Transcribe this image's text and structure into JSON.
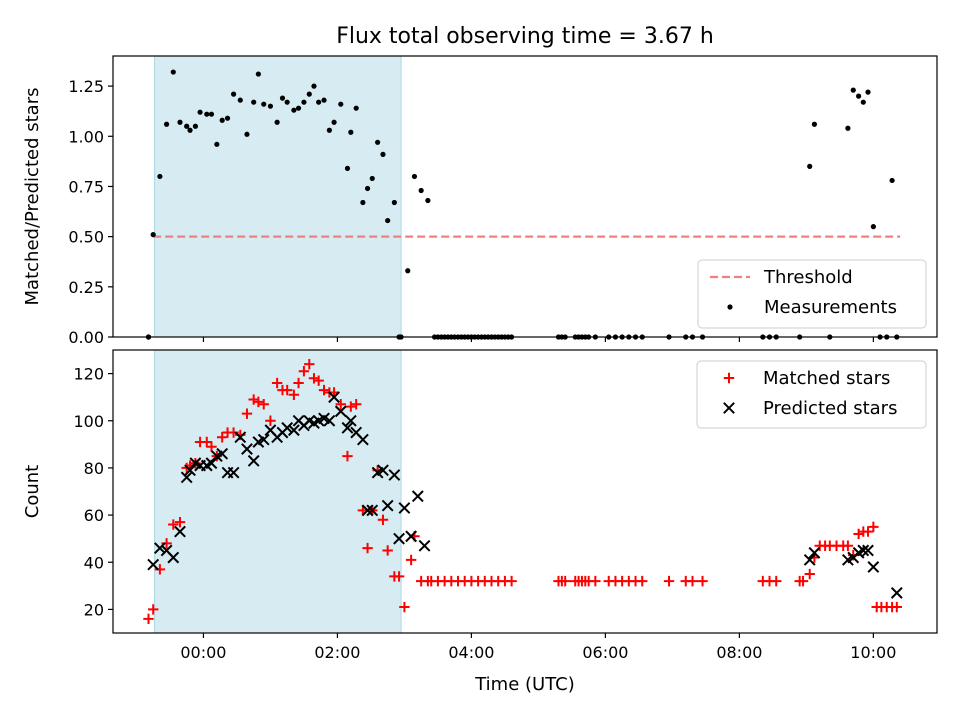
{
  "chart_data": {
    "title": "Flux total observing time = 3.67 h",
    "xlabel": "Time (UTC)",
    "x_unit": "hours UTC",
    "xlim": [
      -1.35,
      10.95
    ],
    "x_ticks": [
      0,
      2,
      4,
      6,
      8,
      10
    ],
    "x_tick_labels": [
      "00:00",
      "02:00",
      "04:00",
      "06:00",
      "08:00",
      "10:00"
    ],
    "shaded_interval": {
      "x_start": -0.73,
      "x_end": 2.95,
      "color": "#add8e6"
    },
    "panels": [
      {
        "type": "scatter",
        "ylabel": "Matched/Predicted stars",
        "ylim": [
          0,
          1.4
        ],
        "y_ticks": [
          0.0,
          0.25,
          0.5,
          0.75,
          1.0,
          1.25
        ],
        "y_tick_labels": [
          "0.00",
          "0.25",
          "0.50",
          "0.75",
          "1.00",
          "1.25"
        ],
        "legend": {
          "position": "lower right",
          "entries": [
            "Threshold",
            "Measurements"
          ]
        },
        "threshold": {
          "name": "Threshold",
          "y": 0.5,
          "x_range": [
            -0.75,
            10.4
          ],
          "color": "#f08080"
        },
        "series": [
          {
            "name": "Measurements",
            "marker": "dot",
            "color": "#000000",
            "x": [
              -0.82,
              -0.75,
              -0.65,
              -0.55,
              -0.45,
              -0.35,
              -0.25,
              -0.2,
              -0.12,
              -0.05,
              0.05,
              0.12,
              0.2,
              0.28,
              0.36,
              0.45,
              0.55,
              0.65,
              0.75,
              0.82,
              0.9,
              1.0,
              1.1,
              1.18,
              1.25,
              1.35,
              1.42,
              1.5,
              1.58,
              1.65,
              1.72,
              1.8,
              1.88,
              1.95,
              2.05,
              2.15,
              2.2,
              2.28,
              2.38,
              2.45,
              2.52,
              2.6,
              2.68,
              2.75,
              2.85,
              2.92,
              3.05,
              3.15,
              3.25,
              3.35,
              9.05,
              9.12,
              9.62,
              9.7,
              9.78,
              9.85,
              9.92,
              10.0,
              10.28,
              -0.82,
              2.95,
              3.45,
              3.5,
              3.55,
              3.6,
              3.65,
              3.7,
              3.75,
              3.8,
              3.85,
              3.9,
              3.95,
              4.0,
              4.05,
              4.1,
              4.15,
              4.2,
              4.25,
              4.3,
              4.35,
              4.4,
              4.45,
              4.5,
              4.55,
              4.6,
              5.3,
              5.35,
              5.4,
              5.55,
              5.6,
              5.65,
              5.7,
              5.75,
              5.85,
              6.05,
              6.15,
              6.25,
              6.35,
              6.45,
              6.55,
              6.95,
              7.2,
              7.3,
              7.45,
              8.35,
              8.45,
              8.55,
              8.9,
              9.35,
              10.1,
              10.2,
              10.35
            ],
            "y": [
              0.0,
              0.51,
              0.8,
              1.06,
              1.32,
              1.07,
              1.05,
              1.03,
              1.05,
              1.12,
              1.11,
              1.11,
              0.96,
              1.08,
              1.09,
              1.21,
              1.18,
              1.01,
              1.17,
              1.31,
              1.16,
              1.15,
              1.07,
              1.19,
              1.17,
              1.13,
              1.14,
              1.17,
              1.21,
              1.25,
              1.17,
              1.18,
              1.03,
              1.07,
              1.16,
              0.84,
              1.02,
              1.14,
              0.67,
              0.74,
              0.79,
              0.97,
              0.91,
              0.58,
              0.67,
              0.0,
              0.33,
              0.8,
              0.73,
              0.68,
              0.85,
              1.06,
              1.04,
              1.23,
              1.2,
              1.17,
              1.22,
              0.55,
              0.78,
              0.0,
              0.0,
              0.0,
              0.0,
              0.0,
              0.0,
              0.0,
              0.0,
              0.0,
              0.0,
              0.0,
              0.0,
              0.0,
              0.0,
              0.0,
              0.0,
              0.0,
              0.0,
              0.0,
              0.0,
              0.0,
              0.0,
              0.0,
              0.0,
              0.0,
              0.0,
              0.0,
              0.0,
              0.0,
              0.0,
              0.0,
              0.0,
              0.0,
              0.0,
              0.0,
              0.0,
              0.0,
              0.0,
              0.0,
              0.0,
              0.0,
              0.0,
              0.0,
              0.0,
              0.0,
              0.0,
              0.0,
              0.0,
              0.0,
              0.0,
              0.0,
              0.0,
              0.0
            ]
          }
        ]
      },
      {
        "type": "scatter",
        "ylabel": "Count",
        "ylim": [
          10,
          130
        ],
        "y_ticks": [
          20,
          40,
          60,
          80,
          100,
          120
        ],
        "y_tick_labels": [
          "20",
          "40",
          "60",
          "80",
          "100",
          "120"
        ],
        "legend": {
          "position": "upper right",
          "entries": [
            "Matched stars",
            "Predicted stars"
          ]
        },
        "series": [
          {
            "name": "Matched stars",
            "marker": "plus",
            "color": "#ff0000",
            "x": [
              -0.82,
              -0.75,
              -0.65,
              -0.55,
              -0.45,
              -0.35,
              -0.25,
              -0.2,
              -0.12,
              -0.05,
              0.05,
              0.12,
              0.2,
              0.28,
              0.36,
              0.45,
              0.55,
              0.65,
              0.75,
              0.82,
              0.9,
              1.0,
              1.1,
              1.18,
              1.25,
              1.35,
              1.42,
              1.5,
              1.58,
              1.65,
              1.72,
              1.8,
              1.88,
              1.95,
              2.05,
              2.15,
              2.2,
              2.28,
              2.38,
              2.45,
              2.52,
              2.6,
              2.68,
              2.75,
              2.85,
              2.92,
              3.0,
              3.1,
              3.15,
              3.25,
              3.35,
              3.4,
              3.5,
              3.6,
              3.7,
              3.8,
              3.9,
              4.0,
              4.1,
              4.2,
              4.3,
              4.4,
              4.5,
              4.6,
              5.3,
              5.35,
              5.4,
              5.55,
              5.6,
              5.65,
              5.7,
              5.75,
              5.85,
              6.05,
              6.15,
              6.25,
              6.35,
              6.45,
              6.55,
              6.95,
              7.2,
              7.3,
              7.45,
              8.35,
              8.45,
              8.55,
              8.9,
              8.95,
              9.05,
              9.12,
              9.2,
              9.28,
              9.35,
              9.45,
              9.55,
              9.62,
              9.7,
              9.78,
              9.85,
              9.92,
              10.0,
              10.05,
              10.12,
              10.2,
              10.28,
              10.35
            ],
            "y": [
              16,
              20,
              37,
              48,
              56,
              57,
              80,
              81,
              82,
              91,
              91,
              89,
              85,
              93,
              95,
              95,
              94,
              103,
              109,
              108,
              107,
              100,
              116,
              113,
              113,
              111,
              116,
              121,
              124,
              118,
              117,
              113,
              112,
              112,
              107,
              85,
              106,
              107,
              62,
              46,
              62,
              79,
              58,
              45,
              34,
              34,
              21,
              41,
              51,
              32,
              32,
              32,
              32,
              32,
              32,
              32,
              32,
              32,
              32,
              32,
              32,
              32,
              32,
              32,
              32,
              32,
              32,
              32,
              32,
              32,
              32,
              32,
              32,
              32,
              32,
              32,
              32,
              32,
              32,
              32,
              32,
              32,
              32,
              32,
              32,
              32,
              32,
              32,
              35,
              42,
              47,
              47,
              47,
              47,
              47,
              47,
              43,
              52,
              53,
              53,
              55,
              21,
              21,
              21,
              21,
              21
            ]
          },
          {
            "name": "Predicted stars",
            "marker": "x",
            "color": "#000000",
            "x": [
              -0.75,
              -0.65,
              -0.55,
              -0.45,
              -0.35,
              -0.25,
              -0.2,
              -0.12,
              -0.05,
              0.05,
              0.12,
              0.2,
              0.28,
              0.36,
              0.45,
              0.55,
              0.65,
              0.75,
              0.82,
              0.9,
              1.0,
              1.1,
              1.18,
              1.25,
              1.35,
              1.42,
              1.5,
              1.58,
              1.65,
              1.72,
              1.8,
              1.88,
              1.95,
              2.05,
              2.15,
              2.2,
              2.28,
              2.38,
              2.45,
              2.52,
              2.6,
              2.68,
              2.75,
              2.85,
              2.92,
              3.0,
              3.1,
              3.2,
              3.3,
              9.05,
              9.12,
              9.62,
              9.7,
              9.78,
              9.85,
              9.92,
              10.0,
              10.35
            ],
            "y": [
              39,
              46,
              45,
              42,
              53,
              76,
              79,
              82,
              81,
              81,
              82,
              85,
              86,
              78,
              78,
              93,
              88,
              83,
              91,
              92,
              96,
              93,
              95,
              97,
              96,
              100,
              98,
              100,
              99,
              100,
              101,
              100,
              110,
              104,
              97,
              100,
              95,
              92,
              62,
              62,
              78,
              79,
              64,
              77,
              50,
              63,
              51,
              68,
              47,
              41,
              44,
              41,
              42,
              44,
              45,
              45,
              38,
              27
            ]
          }
        ]
      }
    ]
  }
}
